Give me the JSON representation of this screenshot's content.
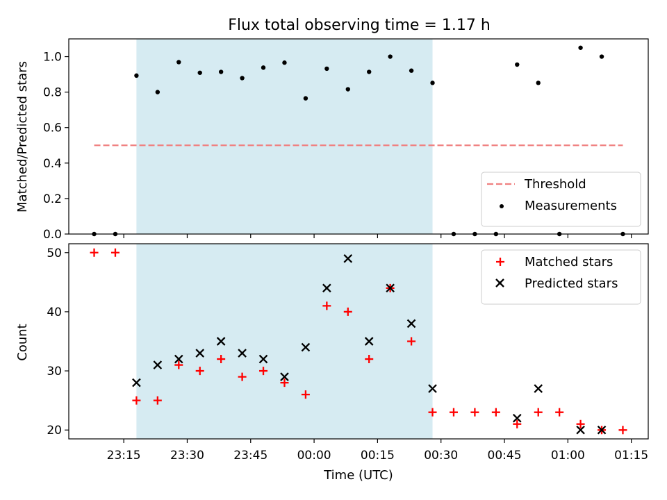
{
  "chart_data": [
    {
      "type": "scatter",
      "title": "Flux total observing time = 1.17 h",
      "xlabel": "",
      "ylabel": "Matched/Predicted stars",
      "ylim": [
        0,
        1.1
      ],
      "yticks": [
        "0.0",
        "0.2",
        "0.4",
        "0.6",
        "0.8",
        "1.0"
      ],
      "xrange": [
        "23:02",
        "01:19"
      ],
      "shaded_span": {
        "start": "23:18",
        "end": "00:28",
        "color": "#add8e6"
      },
      "legend_position": "lower-right",
      "series": [
        {
          "name": "Threshold",
          "kind": "dashed-line",
          "color": "#f08080",
          "x": [
            "23:08",
            "01:13"
          ],
          "y": [
            0.5,
            0.5
          ]
        },
        {
          "name": "Measurements",
          "kind": "points",
          "color": "#000000",
          "x": [
            "23:08",
            "23:13",
            "23:18",
            "23:23",
            "23:28",
            "23:33",
            "23:38",
            "23:43",
            "23:48",
            "23:53",
            "23:58",
            "00:03",
            "00:08",
            "00:13",
            "00:18",
            "00:23",
            "00:28",
            "00:33",
            "00:38",
            "00:43",
            "00:48",
            "00:53",
            "00:58",
            "01:03",
            "01:08",
            "01:13"
          ],
          "y": [
            0.0,
            0.0,
            0.893,
            0.8,
            0.969,
            0.909,
            0.914,
            0.879,
            0.938,
            0.966,
            0.765,
            0.932,
            0.816,
            0.914,
            1.0,
            0.921,
            0.852,
            0.0,
            0.0,
            0.0,
            0.955,
            0.852,
            0.0,
            1.05,
            1.0,
            0.0
          ]
        }
      ]
    },
    {
      "type": "scatter",
      "title": "",
      "xlabel": "Time (UTC)",
      "ylabel": "Count",
      "ylim": [
        18.5,
        51.5
      ],
      "yticks": [
        "20",
        "30",
        "40",
        "50"
      ],
      "xticks": [
        "23:15",
        "23:30",
        "23:45",
        "00:00",
        "00:15",
        "00:30",
        "00:45",
        "01:00",
        "01:15"
      ],
      "xrange": [
        "23:02",
        "01:19"
      ],
      "shaded_span": {
        "start": "23:18",
        "end": "00:28",
        "color": "#add8e6"
      },
      "legend_position": "top-right",
      "series": [
        {
          "name": "Matched stars",
          "marker": "+",
          "color": "#ff0000",
          "x": [
            "23:08",
            "23:13",
            "23:18",
            "23:23",
            "23:28",
            "23:33",
            "23:38",
            "23:43",
            "23:48",
            "23:53",
            "23:58",
            "00:03",
            "00:08",
            "00:13",
            "00:18",
            "00:23",
            "00:28",
            "00:33",
            "00:38",
            "00:43",
            "00:48",
            "00:53",
            "00:58",
            "01:03",
            "01:08",
            "01:13"
          ],
          "y": [
            50,
            50,
            25,
            25,
            31,
            30,
            32,
            29,
            30,
            28,
            26,
            41,
            40,
            32,
            44,
            35,
            23,
            23,
            23,
            23,
            21,
            23,
            23,
            21,
            20,
            20
          ]
        },
        {
          "name": "Predicted stars",
          "marker": "x",
          "color": "#000000",
          "x": [
            "23:18",
            "23:23",
            "23:28",
            "23:33",
            "23:38",
            "23:43",
            "23:48",
            "23:53",
            "23:58",
            "00:03",
            "00:08",
            "00:13",
            "00:18",
            "00:23",
            "00:28",
            "00:48",
            "00:53",
            "01:03",
            "01:08"
          ],
          "y": [
            28,
            31,
            32,
            33,
            35,
            33,
            32,
            29,
            34,
            44,
            49,
            35,
            44,
            38,
            27,
            22,
            27,
            20,
            20
          ]
        }
      ]
    }
  ]
}
